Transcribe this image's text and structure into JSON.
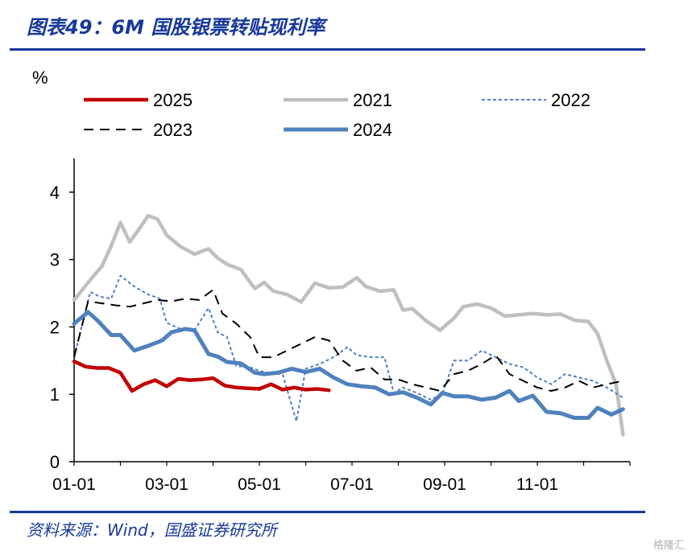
{
  "header": {
    "title": "图表49：6M 国股银票转贴现利率"
  },
  "footer": {
    "source": "资料来源：Wind，国盛证券研究所",
    "watermark": "格隆汇"
  },
  "colors": {
    "s2025": "#c00000",
    "s2021": "#bfbfbf",
    "s2022": "#4f81bd",
    "s2023": "#000000",
    "s2024": "#4f81bd",
    "title": "#17389a"
  },
  "chart_data": {
    "type": "line",
    "unit_label": "%",
    "ylim": [
      0,
      4.5
    ],
    "yticks": [
      "0",
      "1",
      "2",
      "3",
      "4"
    ],
    "xlim": [
      0,
      12
    ],
    "xticks": [
      {
        "label": "01-01",
        "pos": 0
      },
      {
        "label": "03-01",
        "pos": 2
      },
      {
        "label": "05-01",
        "pos": 4
      },
      {
        "label": "07-01",
        "pos": 6
      },
      {
        "label": "09-01",
        "pos": 8
      },
      {
        "label": "11-01",
        "pos": 10
      }
    ],
    "legend_placement": "top",
    "series": [
      {
        "name": "2025",
        "style": "solid-thick",
        "x": [
          0,
          0.25,
          0.5,
          0.75,
          1,
          1.25,
          1.5,
          1.75,
          2,
          2.25,
          2.5,
          2.75,
          3,
          3.25,
          3.5,
          3.75,
          4,
          4.25,
          4.5,
          4.75,
          5,
          5.25,
          5.5
        ],
        "y": [
          1.49,
          1.41,
          1.39,
          1.39,
          1.32,
          1.05,
          1.15,
          1.21,
          1.12,
          1.23,
          1.21,
          1.22,
          1.24,
          1.13,
          1.1,
          1.09,
          1.08,
          1.15,
          1.07,
          1.1,
          1.07,
          1.08,
          1.06
        ]
      },
      {
        "name": "2021",
        "style": "solid-gray",
        "x": [
          0,
          0.4,
          0.6,
          0.8,
          1.0,
          1.2,
          1.4,
          1.6,
          1.8,
          2.0,
          2.3,
          2.6,
          2.9,
          3.1,
          3.3,
          3.6,
          3.9,
          4.1,
          4.3,
          4.6,
          4.9,
          5.2,
          5.5,
          5.8,
          6.1,
          6.3,
          6.6,
          6.9,
          7.1,
          7.3,
          7.6,
          7.9,
          8.2,
          8.4,
          8.7,
          9.0,
          9.3,
          9.6,
          9.9,
          10.2,
          10.5,
          10.8,
          11.1,
          11.3,
          11.5,
          11.7,
          11.85
        ],
        "y": [
          2.4,
          2.74,
          2.9,
          3.2,
          3.55,
          3.26,
          3.45,
          3.65,
          3.6,
          3.36,
          3.19,
          3.08,
          3.16,
          3.02,
          2.93,
          2.85,
          2.57,
          2.66,
          2.53,
          2.48,
          2.37,
          2.65,
          2.58,
          2.59,
          2.73,
          2.6,
          2.53,
          2.55,
          2.25,
          2.27,
          2.09,
          1.95,
          2.13,
          2.3,
          2.34,
          2.28,
          2.16,
          2.18,
          2.2,
          2.18,
          2.19,
          2.1,
          2.08,
          1.9,
          1.5,
          1.15,
          0.4
        ]
      },
      {
        "name": "2022",
        "style": "dotted-blue",
        "x": [
          0,
          0.35,
          0.55,
          0.8,
          1.0,
          1.3,
          1.6,
          1.85,
          2.0,
          2.3,
          2.6,
          2.9,
          3.1,
          3.3,
          3.5,
          3.8,
          4.0,
          4.2,
          4.5,
          4.8,
          5.0,
          5.3,
          5.6,
          5.9,
          6.1,
          6.4,
          6.7,
          6.9,
          7.1,
          7.4,
          7.7,
          7.95,
          8.2,
          8.5,
          8.8,
          9.1,
          9.4,
          9.7,
          10.0,
          10.3,
          10.6,
          10.9,
          11.2,
          11.5,
          11.85
        ],
        "y": [
          1.55,
          2.52,
          2.45,
          2.42,
          2.76,
          2.6,
          2.48,
          2.42,
          2.06,
          1.97,
          1.95,
          2.28,
          1.92,
          1.85,
          1.42,
          1.4,
          1.35,
          1.32,
          1.3,
          0.6,
          1.38,
          1.45,
          1.55,
          1.7,
          1.58,
          1.55,
          1.55,
          1.02,
          1.1,
          1.02,
          0.92,
          1.0,
          1.5,
          1.5,
          1.65,
          1.55,
          1.45,
          1.4,
          1.25,
          1.15,
          1.3,
          1.25,
          1.2,
          1.1,
          0.95
        ]
      },
      {
        "name": "2023",
        "style": "dashed-black",
        "x": [
          0,
          0.3,
          0.6,
          0.9,
          1.2,
          1.5,
          1.8,
          2.1,
          2.4,
          2.7,
          3.0,
          3.2,
          3.5,
          3.8,
          4.0,
          4.3,
          4.6,
          4.9,
          5.2,
          5.5,
          5.8,
          6.1,
          6.4,
          6.7,
          7.0,
          7.3,
          7.6,
          7.9,
          8.2,
          8.5,
          8.8,
          9.1,
          9.4,
          9.7,
          10.0,
          10.3,
          10.6,
          10.9,
          11.2,
          11.5,
          11.85
        ],
        "y": [
          1.55,
          2.38,
          2.35,
          2.32,
          2.3,
          2.35,
          2.4,
          2.38,
          2.42,
          2.4,
          2.55,
          2.2,
          2.05,
          1.85,
          1.55,
          1.55,
          1.65,
          1.75,
          1.85,
          1.8,
          1.5,
          1.35,
          1.4,
          1.22,
          1.22,
          1.15,
          1.1,
          1.05,
          1.3,
          1.35,
          1.45,
          1.58,
          1.3,
          1.2,
          1.1,
          1.05,
          1.1,
          1.2,
          1.1,
          1.15,
          1.2
        ]
      },
      {
        "name": "2024",
        "style": "solid-blue-thick",
        "x": [
          0,
          0.3,
          0.5,
          0.8,
          1.0,
          1.3,
          1.6,
          1.9,
          2.1,
          2.4,
          2.6,
          2.9,
          3.1,
          3.3,
          3.6,
          3.9,
          4.1,
          4.4,
          4.7,
          5.0,
          5.3,
          5.6,
          5.9,
          6.2,
          6.5,
          6.8,
          7.1,
          7.4,
          7.7,
          7.95,
          8.2,
          8.5,
          8.8,
          9.1,
          9.4,
          9.6,
          9.9,
          10.2,
          10.5,
          10.8,
          11.1,
          11.3,
          11.6,
          11.85
        ],
        "y": [
          2.05,
          2.22,
          2.1,
          1.88,
          1.88,
          1.65,
          1.72,
          1.8,
          1.92,
          1.97,
          1.95,
          1.6,
          1.56,
          1.48,
          1.46,
          1.32,
          1.3,
          1.32,
          1.38,
          1.33,
          1.38,
          1.25,
          1.15,
          1.12,
          1.1,
          1.0,
          1.03,
          0.95,
          0.85,
          1.02,
          0.97,
          0.97,
          0.92,
          0.95,
          1.05,
          0.9,
          0.98,
          0.74,
          0.72,
          0.65,
          0.65,
          0.8,
          0.7,
          0.78
        ]
      }
    ]
  }
}
